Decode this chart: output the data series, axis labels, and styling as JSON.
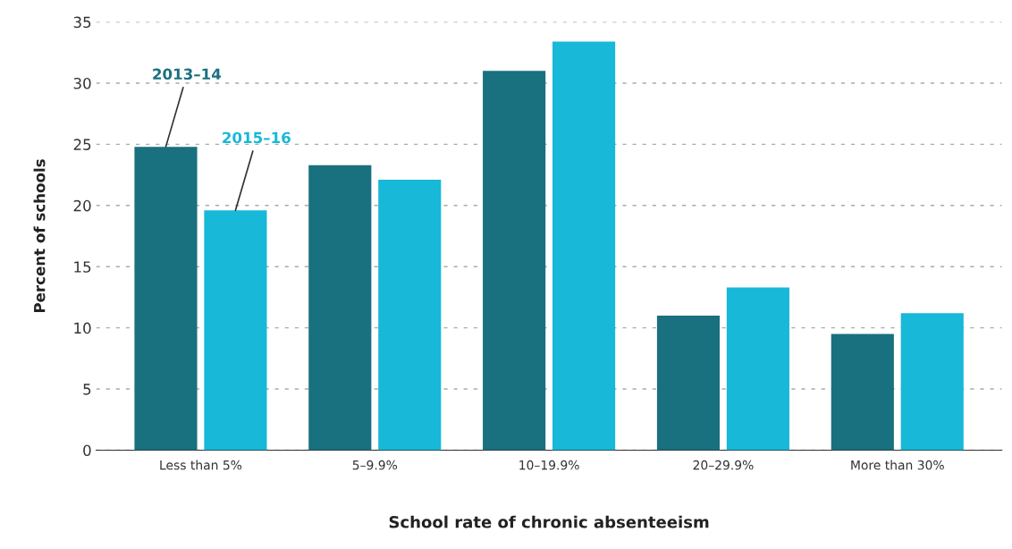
{
  "chart_data": {
    "type": "bar",
    "xlabel": "School rate of chronic absenteeism",
    "ylabel": "Percent of schools",
    "categories": [
      "Less than 5%",
      "5–9.9%",
      "10–19.9%",
      "20–29.9%",
      "More than 30%"
    ],
    "series": [
      {
        "name": "2013–14",
        "color": "#19707f",
        "values": [
          24.8,
          23.3,
          31.0,
          11.0,
          9.5
        ]
      },
      {
        "name": "2015–16",
        "color": "#17b8d8",
        "values": [
          19.6,
          22.1,
          33.4,
          13.3,
          11.2
        ]
      }
    ],
    "ylim": [
      0,
      35
    ],
    "yticks": [
      0,
      5,
      10,
      15,
      20,
      25,
      30,
      35
    ],
    "grid": "y",
    "legend": false
  }
}
